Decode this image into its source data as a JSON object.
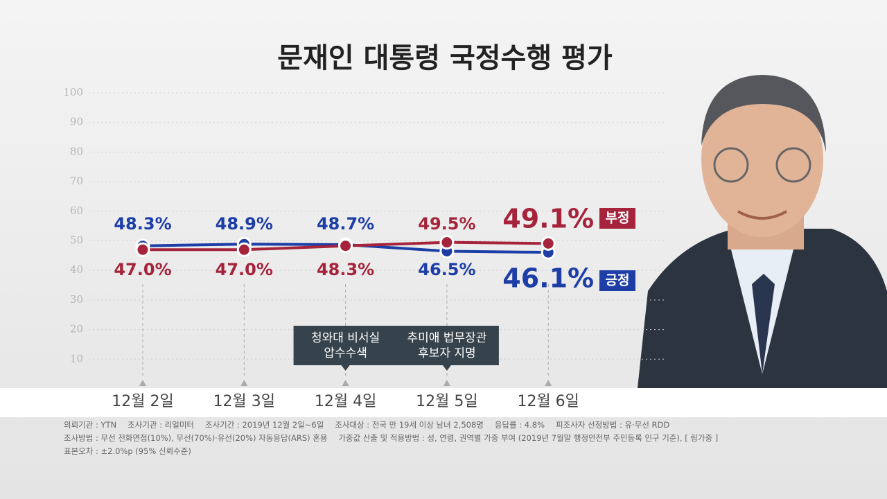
{
  "chart_data": {
    "type": "line",
    "title": "문재인 대통령 국정수행 평가",
    "categories": [
      "12월 2일",
      "12월 3일",
      "12월 4일",
      "12월 5일",
      "12월 6일"
    ],
    "series": [
      {
        "name": "긍정",
        "color": "#1c3ea6",
        "values": [
          48.3,
          48.9,
          48.7,
          46.5,
          46.1
        ],
        "value_labels": [
          "48.3%",
          "48.9%",
          "48.7%",
          "46.5%",
          "46.1%"
        ]
      },
      {
        "name": "부정",
        "color": "#a5243b",
        "values": [
          47.0,
          47.0,
          48.3,
          49.5,
          49.1
        ],
        "value_labels": [
          "47.0%",
          "47.0%",
          "48.3%",
          "49.5%",
          "49.1%"
        ]
      }
    ],
    "ylim": [
      0,
      100
    ],
    "yticks": [
      10,
      20,
      30,
      40,
      50,
      60,
      70,
      80,
      90,
      100
    ],
    "grid": true,
    "events": [
      null,
      null,
      [
        "청와대 비서실",
        "압수수색"
      ],
      [
        "추미애 법무장관",
        "후보자 지명"
      ],
      null
    ]
  },
  "footer": [
    [
      "의뢰기관 : YTN",
      "조사기관 : 리얼미터",
      "조사기간 : 2019년 12월 2일~6일",
      "조사대상 : 전국 만 19세 이상 남녀 2,508명",
      "응답률 : 4.8%",
      "피조사자 선정방법 : 유·무선 RDD"
    ],
    [
      "조사방법 : 무선 전화면접(10%), 무선(70%)·유선(20%) 자동응답(ARS) 혼용",
      "가중값 산출 및 적용방법 : 성, 연령, 권역별 가중 부여  (2019년 7월말 행정안전부 주민등록 인구 기준), [ 림가중 ]"
    ],
    [
      "표본오차 : ±2.0%p (95% 신뢰수준)"
    ]
  ]
}
